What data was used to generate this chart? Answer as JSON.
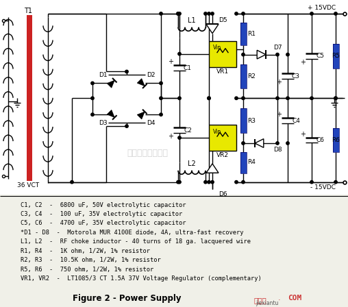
{
  "bg_color": "#f0f0e8",
  "circuit_bg": "#ffffff",
  "title": "Figure 2 - Power Supply",
  "bom_lines": [
    "C1, C2  -  6800 uF, 50V electrolytic capacitor",
    "C3, C4  -  100 uF, 35V electrolytic capacitor",
    "C5, C6  -  4700 uF, 35V electrolytic capacitor",
    "*D1 - D8  -  Motorola MUR 4100E diode, 4A, ultra-fast recovery",
    "L1, L2  -  RF choke inductor - 40 turns of 18 ga. lacquered wire",
    "R1, R4  -  1K ohm, 1/2W, 1% resistor",
    "R2, R3  -  10.5K ohm, 1/2W, 1% resistor",
    "R5, R6  -  750 ohm, 1/2W, 1% resistor",
    "VR1, VR2  -  LT1085/3 CT 1.5A 37V Voltage Regulator (complementary)"
  ],
  "label_36VCT": "36 VCT",
  "label_T1": "T1",
  "label_L1": "L1",
  "label_L2": "L2",
  "label_C1": "C1",
  "label_C2": "C2",
  "label_VR1": "VR1",
  "label_VR2": "VR2",
  "label_Vin": "Vin",
  "label_D5": "D5",
  "label_D6": "D6",
  "label_R1": "R1",
  "label_R2": "R2",
  "label_R3": "R3",
  "label_R4": "R4",
  "label_R5": "R5",
  "label_R6": "R6",
  "label_D7": "D7",
  "label_D8": "D8",
  "label_C3": "C3",
  "label_C4": "C4",
  "label_C5": "C5",
  "label_C6": "C6",
  "label_D1": "D1",
  "label_D2": "D2",
  "label_D3": "D3",
  "label_D4": "D4",
  "label_plus15": "+ 15VDC",
  "label_minus15": "- 15VDC",
  "vr_fill": "#e8e800",
  "r_fill": "#2244bb",
  "transformer_fill": "#cc2222",
  "line_color": "#000000",
  "text_color": "#000000",
  "jiexiantu_color": "#cc3333",
  "watermark": "杭州梯智科技公司"
}
